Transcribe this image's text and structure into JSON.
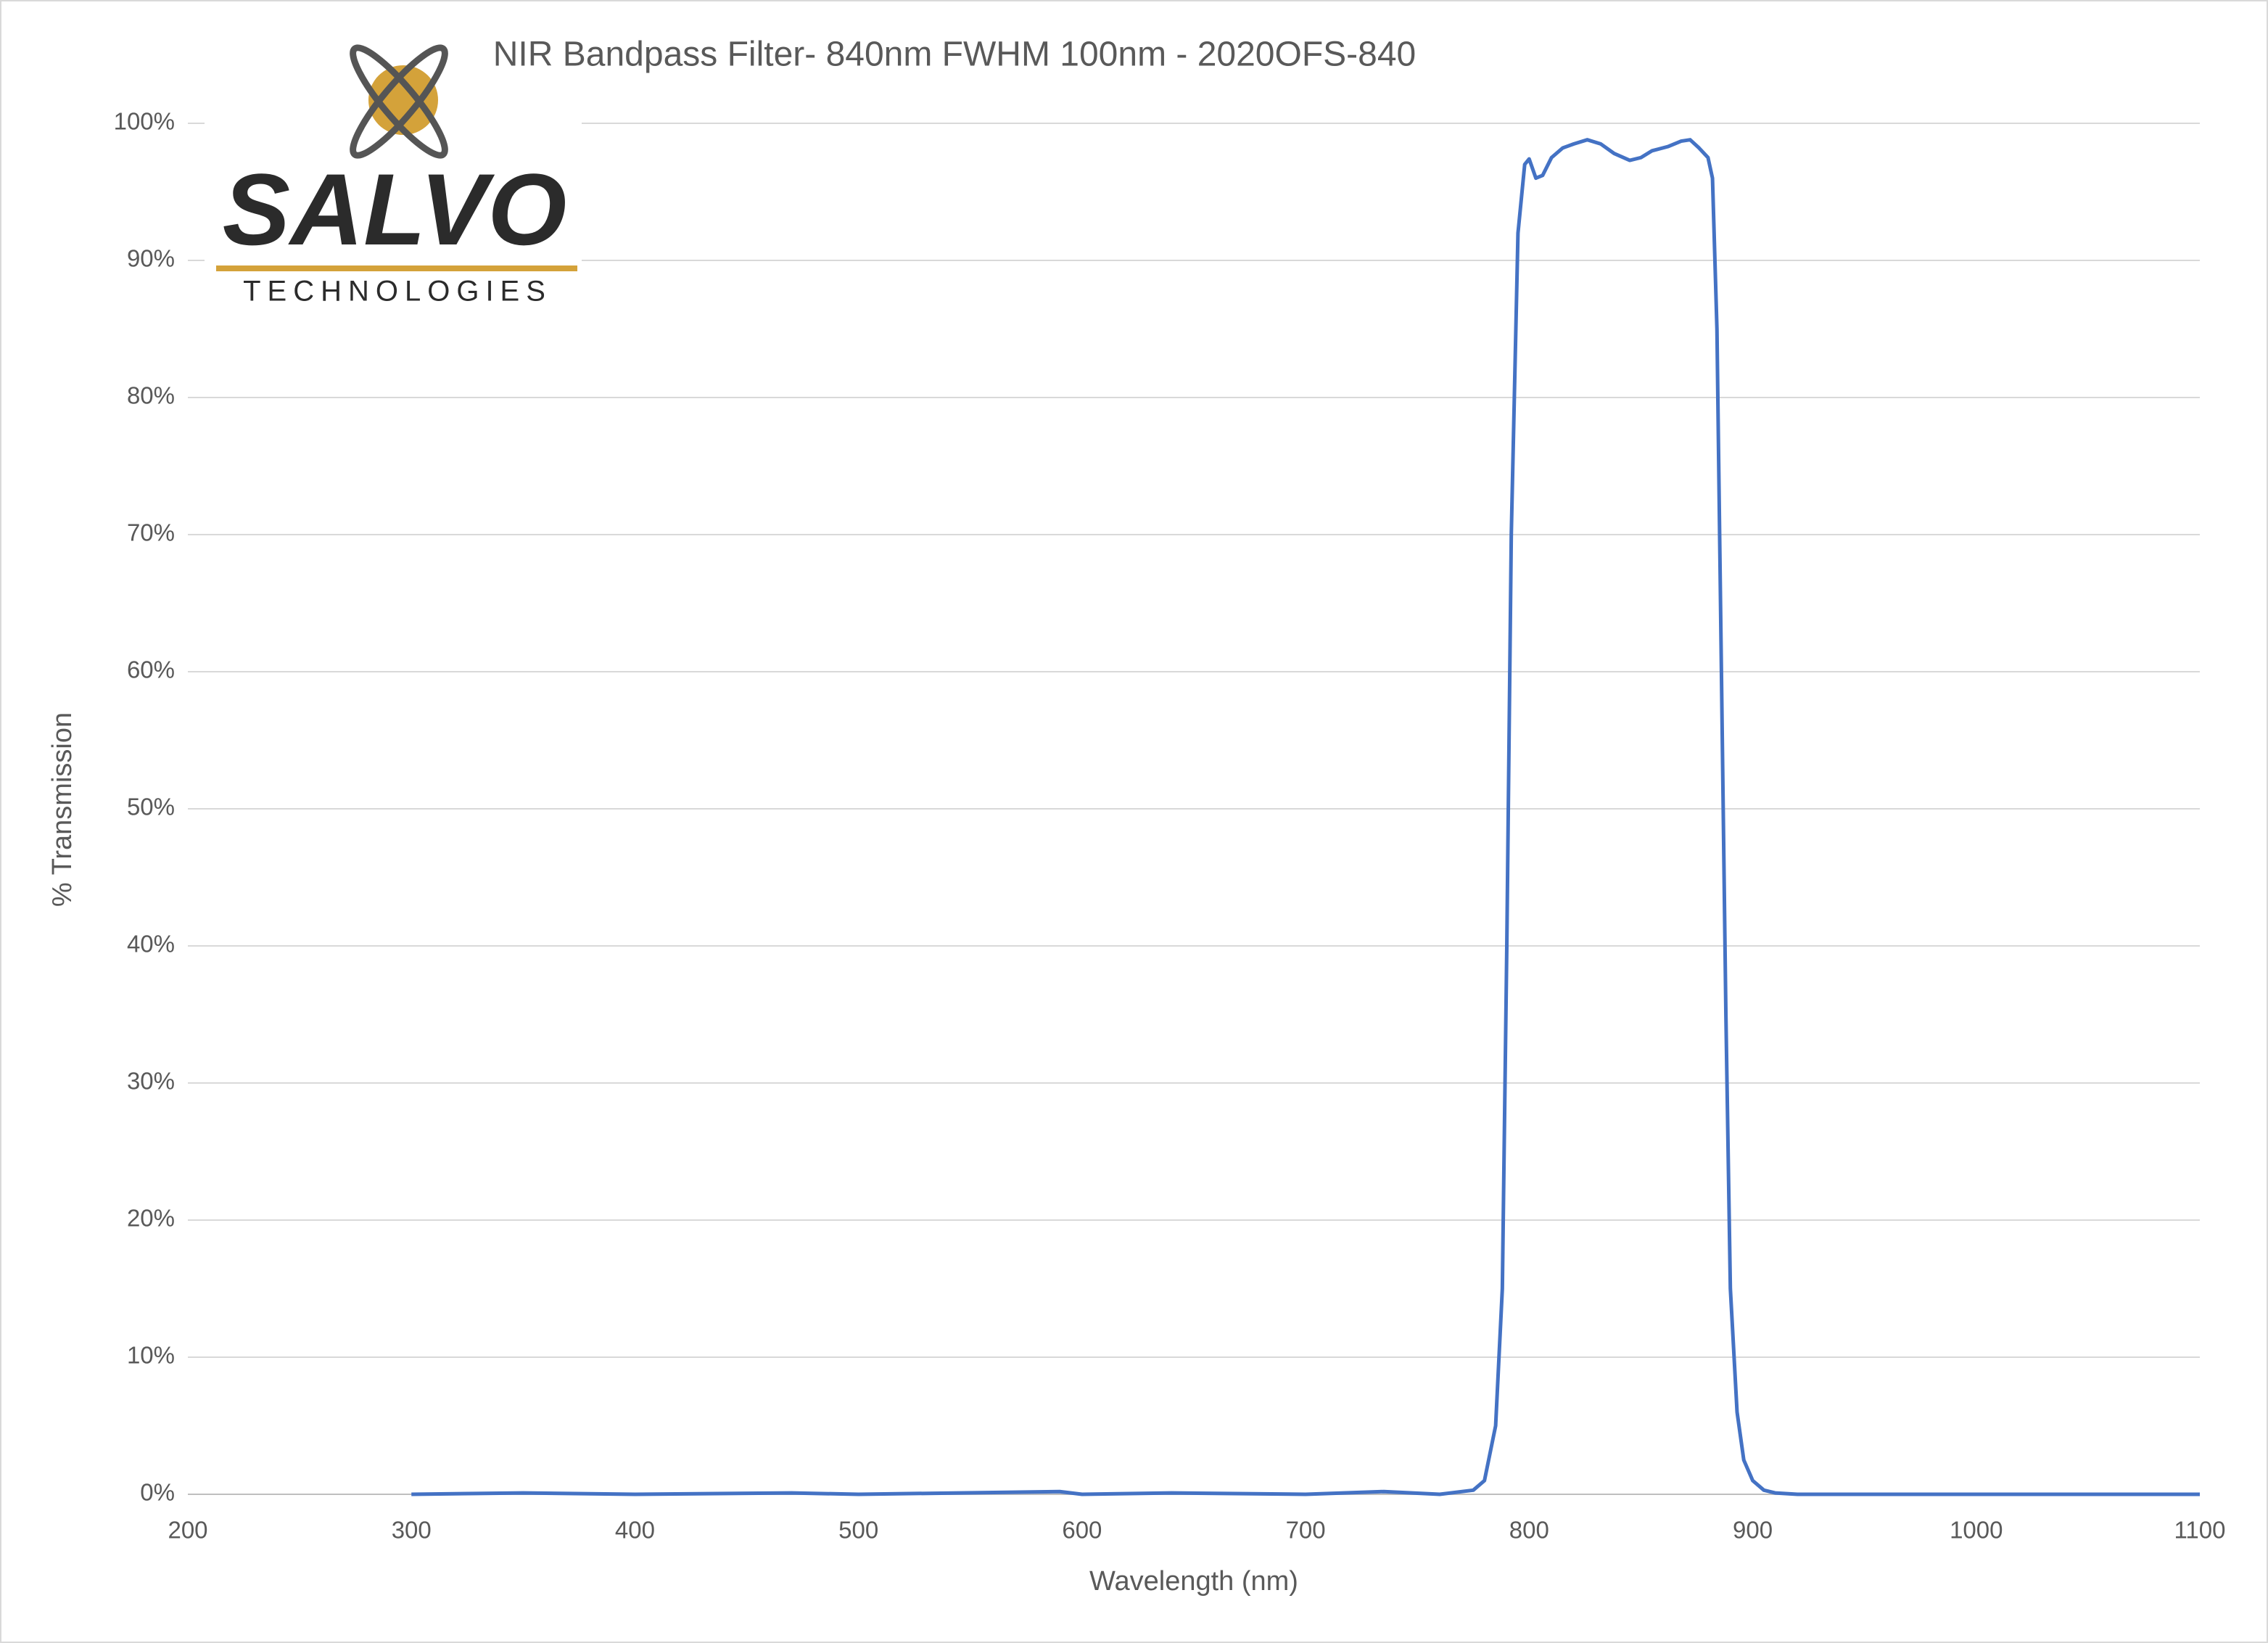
{
  "chart_data": {
    "type": "line",
    "title": "NIR Bandpass Filter- 840nm FWHM 100nm - 2020OFS-840",
    "x_label": "Wavelength (nm)",
    "y_label": "% Transmission",
    "logo": {
      "name": "SALVO",
      "tagline": "TECHNOLOGIES"
    },
    "color": "#4472c4",
    "grid": true,
    "xlim": [
      200,
      1100
    ],
    "xticks": [
      200,
      300,
      400,
      500,
      600,
      700,
      800,
      900,
      1000,
      1100
    ],
    "ylim": [
      0,
      100
    ],
    "yticks": [
      {
        "value": 0,
        "label": "0%"
      },
      {
        "value": 10,
        "label": "10%"
      },
      {
        "value": 20,
        "label": "20%"
      },
      {
        "value": 30,
        "label": "30%"
      },
      {
        "value": 40,
        "label": "40%"
      },
      {
        "value": 50,
        "label": "50%"
      },
      {
        "value": 60,
        "label": "60%"
      },
      {
        "value": 70,
        "label": "70%"
      },
      {
        "value": 80,
        "label": "80%"
      },
      {
        "value": 90,
        "label": "90%"
      },
      {
        "value": 100,
        "label": "100%"
      }
    ],
    "x": [
      300,
      350,
      400,
      470,
      500,
      590,
      600,
      640,
      700,
      735,
      760,
      775,
      780,
      785,
      788,
      790,
      792,
      795,
      798,
      800,
      803,
      806,
      810,
      815,
      820,
      826,
      832,
      838,
      845,
      850,
      855,
      862,
      868,
      872,
      876,
      880,
      882,
      884,
      886,
      888,
      890,
      893,
      896,
      900,
      905,
      910,
      920,
      1000,
      1100
    ],
    "values": [
      0,
      0.1,
      0,
      0.1,
      0,
      0.2,
      0,
      0.1,
      0,
      0.2,
      0,
      0.3,
      1,
      5,
      15,
      40,
      70,
      92,
      97,
      97.4,
      96,
      96.2,
      97.5,
      98.2,
      98.5,
      98.8,
      98.5,
      97.8,
      97.3,
      97.5,
      98,
      98.3,
      98.7,
      98.8,
      98.2,
      97.5,
      96,
      85,
      60,
      35,
      15,
      6,
      2.5,
      1,
      0.3,
      0.1,
      0,
      0,
      0
    ]
  }
}
